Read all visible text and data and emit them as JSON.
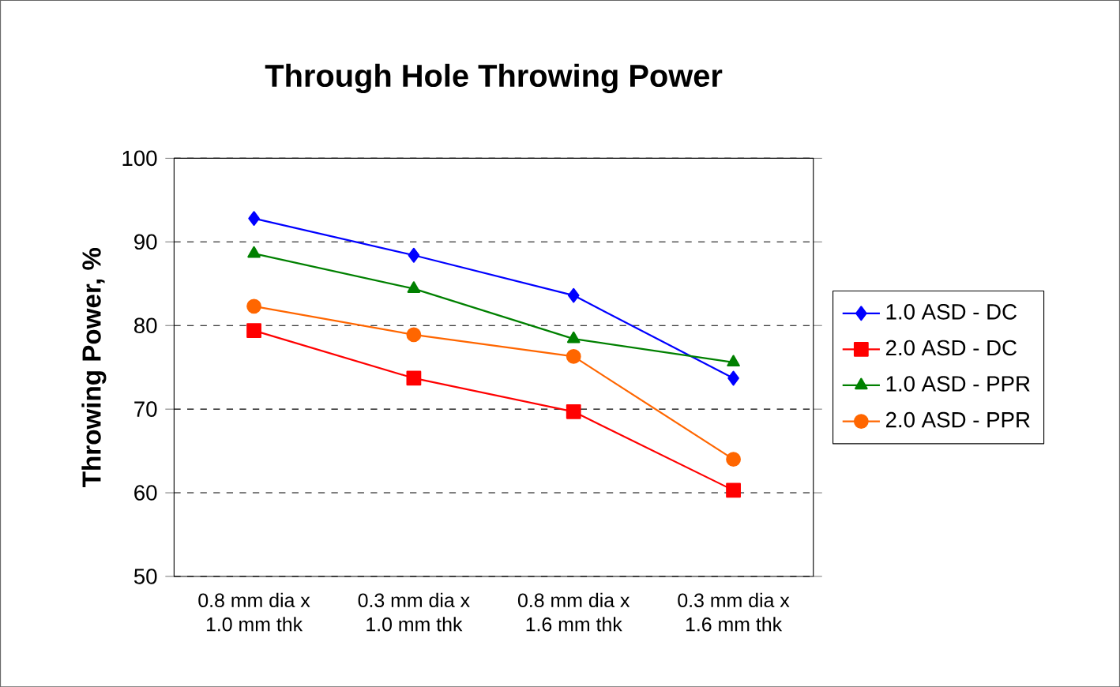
{
  "chart_data": {
    "type": "line",
    "title": "Through Hole Throwing Power",
    "ylabel": "Throwing Power, %",
    "categories": [
      "0.8 mm dia x\n1.0 mm thk",
      "0.3 mm dia x\n1.0 mm thk",
      "0.8 mm dia x\n1.6 mm thk",
      "0.3 mm dia x\n1.6 mm thk"
    ],
    "ylim": [
      50,
      100
    ],
    "yticks": [
      50,
      60,
      70,
      80,
      90,
      100
    ],
    "grid": "y",
    "legend": "right",
    "series": [
      {
        "name": "1.0 ASD - DC",
        "color": "#0000ff",
        "marker": "diamond",
        "values": [
          92.8,
          88.4,
          83.6,
          73.7
        ]
      },
      {
        "name": "2.0 ASD - DC",
        "color": "#ff0000",
        "marker": "square",
        "values": [
          79.4,
          73.7,
          69.7,
          60.3
        ]
      },
      {
        "name": "1.0 ASD - PPR",
        "color": "#008000",
        "marker": "triangle",
        "values": [
          88.6,
          84.4,
          78.4,
          75.6
        ]
      },
      {
        "name": "2.0 ASD - PPR",
        "color": "#ff6600",
        "marker": "circle",
        "values": [
          82.3,
          78.9,
          76.3,
          64.0
        ]
      }
    ]
  }
}
